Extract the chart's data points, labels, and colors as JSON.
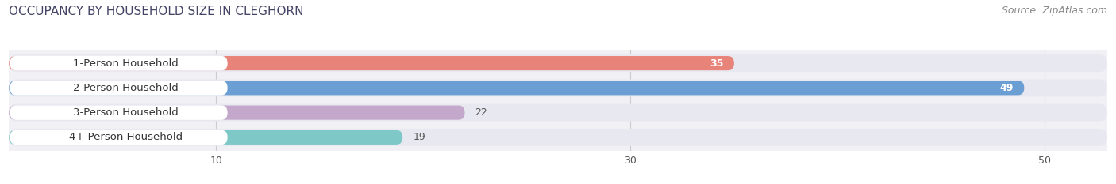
{
  "title": "OCCUPANCY BY HOUSEHOLD SIZE IN CLEGHORN",
  "source": "Source: ZipAtlas.com",
  "categories": [
    "1-Person Household",
    "2-Person Household",
    "3-Person Household",
    "4+ Person Household"
  ],
  "values": [
    35,
    49,
    22,
    19
  ],
  "bar_colors": [
    "#E8837A",
    "#6B9FD4",
    "#C4A8CC",
    "#7EC8C8"
  ],
  "bg_color": "#FFFFFF",
  "bar_area_bg": "#F0F0F5",
  "bar_bg_color": "#E8E8F0",
  "label_pill_color": "#FFFFFF",
  "xlim": [
    0,
    53
  ],
  "xticks": [
    10,
    30,
    50
  ],
  "label_inside_color": "#FFFFFF",
  "label_outside_color": "#555555",
  "label_inside_threshold": 30,
  "title_fontsize": 11,
  "source_fontsize": 9,
  "tick_fontsize": 9,
  "category_fontsize": 9.5,
  "value_fontsize": 9
}
